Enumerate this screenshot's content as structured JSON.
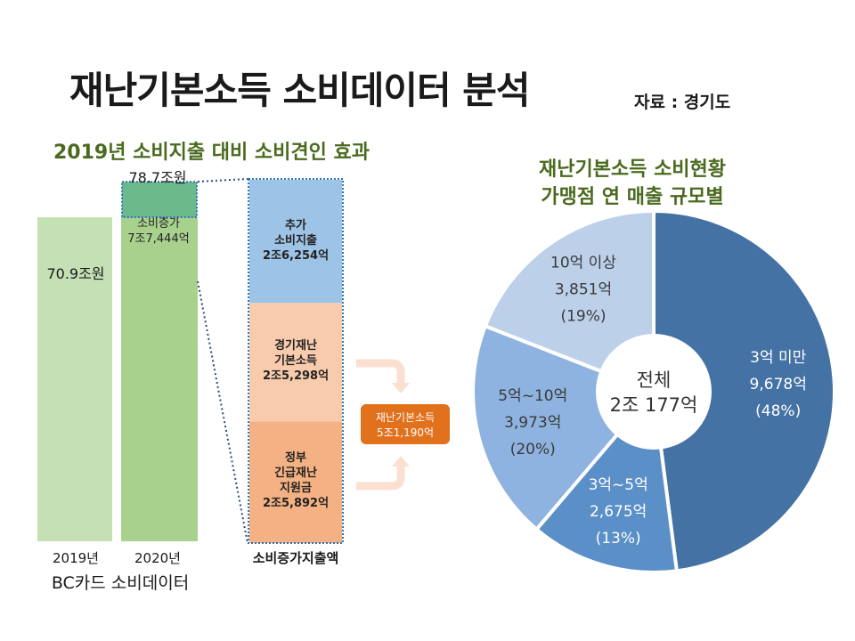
{
  "title": "재난기본소득 소비데이터 분석",
  "source": "자료 : 경기도",
  "chart_data": [
    {
      "type": "bar",
      "subtitle": "2019년 소비지출 대비 소비견인 효과",
      "xlabel": "BC카드 소비데이터",
      "categories": [
        "2019년",
        "2020년"
      ],
      "series": [
        {
          "values": [
            70.9,
            70.9
          ]
        },
        {
          "name": "소비증가",
          "values": [
            0,
            7.7444
          ],
          "label": "7조7,444억"
        }
      ],
      "total_labels": [
        "70.9조원",
        "78.7조원"
      ],
      "breakdown": {
        "label": "소비증가지출액",
        "segments": [
          {
            "lines": [
              "추가",
              "소비지출",
              "2조6,254억"
            ],
            "value": 2.6254
          },
          {
            "lines": [
              "경기재난",
              "기본소득",
              "2조5,298억"
            ],
            "value": 2.5298
          },
          {
            "lines": [
              "정부",
              "긴급재난",
              "지원금",
              "2조5,892억"
            ],
            "value": 2.5892
          }
        ],
        "combined": {
          "lines": [
            "재난기본소득",
            "5조1,190억"
          ],
          "value": 5.119
        }
      },
      "colors": {
        "base": "#a9d18e",
        "increase": "#6cba8c",
        "seg1": "#9dc3e6",
        "seg2": "#f8cbad",
        "seg3": "#f4b183",
        "combined": "#e2711d"
      }
    },
    {
      "type": "pie",
      "title_lines": [
        "재난기본소득 소비현황",
        "가맹점 연 매출 규모별"
      ],
      "center_label": [
        "전체",
        "2조 177억"
      ],
      "slices": [
        {
          "name": "3억 미만",
          "amount": "9,678억",
          "value": 9678,
          "pct": "(48%)",
          "color": "#4472a4"
        },
        {
          "name": "3억~5억",
          "amount": "2,675억",
          "value": 2675,
          "pct": "(13%)",
          "color": "#5b8fc8"
        },
        {
          "name": "5억~10억",
          "amount": "3,973억",
          "value": 3973,
          "pct": "(20%)",
          "color": "#8eb3e0"
        },
        {
          "name": "10억 이상",
          "amount": "3,851억",
          "value": 3851,
          "pct": "(19%)",
          "color": "#bcd0ea"
        }
      ]
    }
  ]
}
